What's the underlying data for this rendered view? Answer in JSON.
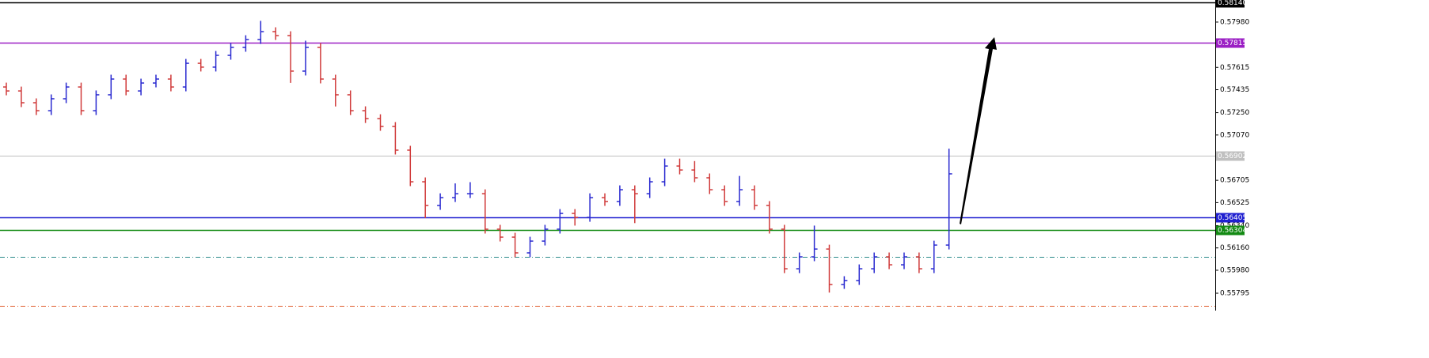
{
  "chart_data": {
    "type": "ohlc",
    "up_color": "#2a2ad0",
    "down_color": "#d03a3a",
    "open": [
      0.57457,
      0.57425,
      0.5733,
      0.57266,
      0.57362,
      0.57457,
      0.57266,
      0.57394,
      0.57521,
      0.57425,
      0.57489,
      0.57521,
      0.57457,
      0.57648,
      0.57617,
      0.57712,
      0.57776,
      0.57839,
      0.57903,
      0.57871,
      0.57585,
      0.57776,
      0.57521,
      0.57394,
      0.57266,
      0.57202,
      0.57139,
      0.56948,
      0.56693,
      0.56502,
      0.56565,
      0.56597,
      0.56597,
      0.56311,
      0.56247,
      0.5612,
      0.56215,
      0.56311,
      0.56438,
      0.56406,
      0.56565,
      0.56534,
      0.56629,
      0.56597,
      0.56693,
      0.5682,
      0.56788,
      0.56725,
      0.56629,
      0.56534,
      0.56629,
      0.56502,
      0.56311,
      0.55992,
      0.56088,
      0.56151,
      0.55865,
      0.55897,
      0.55992,
      0.56088,
      0.56024,
      0.56088,
      0.55992,
      0.56183
    ],
    "high": [
      0.57492,
      0.5746,
      0.57365,
      0.57397,
      0.57492,
      0.57492,
      0.57429,
      0.57556,
      0.57556,
      0.57524,
      0.57556,
      0.57556,
      0.57683,
      0.57683,
      0.57747,
      0.57811,
      0.57874,
      0.5799,
      0.57938,
      0.57906,
      0.5783,
      0.57811,
      0.57556,
      0.57429,
      0.57301,
      0.57237,
      0.57174,
      0.56983,
      0.56728,
      0.566,
      0.5668,
      0.5669,
      0.56632,
      0.56346,
      0.56282,
      0.5625,
      0.56346,
      0.56473,
      0.56473,
      0.566,
      0.566,
      0.56664,
      0.56664,
      0.56728,
      0.5688,
      0.5688,
      0.5686,
      0.5676,
      0.56664,
      0.5674,
      0.56664,
      0.56537,
      0.56346,
      0.56123,
      0.5634,
      0.56186,
      0.55932,
      0.56027,
      0.56123,
      0.56123,
      0.56123,
      0.56123,
      0.56218,
      0.5696
    ],
    "low": [
      0.5739,
      0.57295,
      0.57231,
      0.57231,
      0.57327,
      0.57231,
      0.57231,
      0.57359,
      0.5739,
      0.5739,
      0.57454,
      0.57422,
      0.57422,
      0.57582,
      0.57582,
      0.57677,
      0.57741,
      0.57804,
      0.57836,
      0.5749,
      0.5755,
      0.57486,
      0.573,
      0.57231,
      0.57167,
      0.57104,
      0.56913,
      0.56658,
      0.564,
      0.56467,
      0.5653,
      0.56562,
      0.56276,
      0.56212,
      0.56085,
      0.56085,
      0.5618,
      0.56276,
      0.5634,
      0.56371,
      0.56499,
      0.56499,
      0.5636,
      0.56562,
      0.56658,
      0.56753,
      0.5669,
      0.56594,
      0.56499,
      0.56499,
      0.56467,
      0.56276,
      0.55957,
      0.55957,
      0.56053,
      0.558,
      0.5583,
      0.55862,
      0.55957,
      0.55989,
      0.55989,
      0.55957,
      0.55957,
      0.56148
    ],
    "close": [
      0.57425,
      0.5733,
      0.57266,
      0.57362,
      0.57457,
      0.57266,
      0.57394,
      0.57521,
      0.57425,
      0.57489,
      0.57521,
      0.57457,
      0.57648,
      0.57617,
      0.57712,
      0.57776,
      0.57839,
      0.57903,
      0.57871,
      0.57585,
      0.57776,
      0.57521,
      0.57394,
      0.57266,
      0.57202,
      0.57139,
      0.56948,
      0.56693,
      0.56502,
      0.56565,
      0.56597,
      0.56597,
      0.56311,
      0.56247,
      0.5612,
      0.56215,
      0.56311,
      0.56438,
      0.56406,
      0.56565,
      0.56534,
      0.56629,
      0.56597,
      0.56693,
      0.5682,
      0.56788,
      0.56725,
      0.56629,
      0.56534,
      0.56629,
      0.56502,
      0.56311,
      0.55992,
      0.56088,
      0.56151,
      0.55865,
      0.55897,
      0.55992,
      0.56088,
      0.56024,
      0.56088,
      0.55992,
      0.56183,
      0.56757
    ],
    "ylim": [
      0.55655,
      0.58158
    ],
    "yticks": [
      {
        "value": 0.5798,
        "label": "0.57980"
      },
      {
        "value": 0.57615,
        "label": "0.57615"
      },
      {
        "value": 0.57435,
        "label": "0.57435"
      },
      {
        "value": 0.5725,
        "label": "0.57250"
      },
      {
        "value": 0.5707,
        "label": "0.57070"
      },
      {
        "value": 0.56705,
        "label": "0.56705"
      },
      {
        "value": 0.56525,
        "label": "0.56525"
      },
      {
        "value": 0.5634,
        "label": "0.56340"
      },
      {
        "value": 0.5616,
        "label": "0.56160"
      },
      {
        "value": 0.5598,
        "label": "0.55980"
      },
      {
        "value": 0.55795,
        "label": "0.55795"
      }
    ],
    "levels": [
      {
        "value": 0.5814,
        "label": "0.58140",
        "color": "#000000",
        "style": "solid"
      },
      {
        "value": 0.57815,
        "label": "0.57815",
        "color": "#9b1fc4",
        "style": "solid"
      },
      {
        "value": 0.56902,
        "label": "0.56902",
        "color": "#c0c0c0",
        "style": "solid"
      },
      {
        "value": 0.56405,
        "label": "0.56405",
        "color": "#1f1fd0",
        "style": "solid"
      },
      {
        "value": 0.56304,
        "label": "0.56304",
        "color": "#138a13",
        "style": "solid"
      },
      {
        "value": 0.56088,
        "color": "#2a8a8a",
        "style": "dashdot"
      },
      {
        "value": 0.55693,
        "color": "#e05a2a",
        "style": "dashdot"
      }
    ]
  }
}
